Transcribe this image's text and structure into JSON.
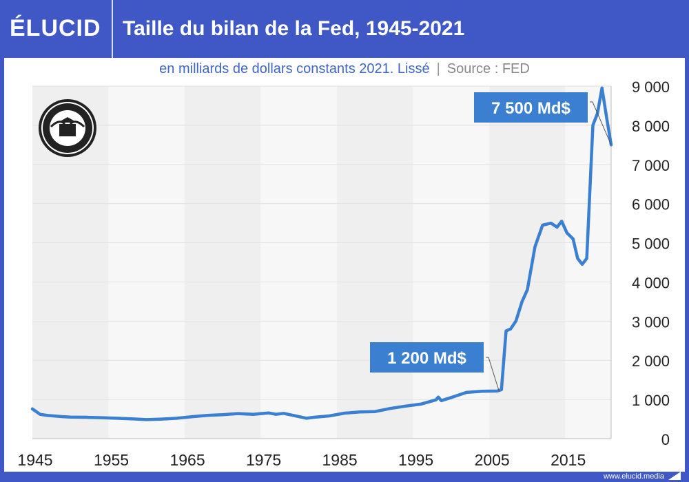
{
  "header": {
    "logo": "ÉLUCID",
    "title": "Taille du bilan de la Fed, 1945-2021"
  },
  "subtitle": {
    "main": "en milliards de dollars constants 2021. Lissé",
    "separator": "|",
    "source": "Source : FED"
  },
  "footer": {
    "url": "www.elucid.media"
  },
  "seal": {
    "text": "UNITED STATES FEDERAL RESERVE SYSTEM"
  },
  "colors": {
    "frame": "#3F58C5",
    "line": "#3A7FD0",
    "label_bg": "#3A7FD0"
  },
  "chart_data": {
    "type": "line",
    "title": "Taille du bilan de la Fed, 1945-2021",
    "xlabel": "",
    "ylabel": "",
    "xlim": [
      1945,
      2021
    ],
    "ylim": [
      0,
      9000
    ],
    "x_ticks": [
      "1945",
      "1955",
      "1965",
      "1975",
      "1985",
      "1995",
      "2005",
      "2015"
    ],
    "y_ticks": [
      "0",
      "1 000",
      "2 000",
      "3 000",
      "4 000",
      "5 000",
      "6 000",
      "7 000",
      "8 000",
      "9 000"
    ],
    "y_axis_side": "right",
    "grid": true,
    "annotations": [
      {
        "text": "1 200 Md$",
        "x": 2006.3,
        "y": 1200
      },
      {
        "text": "7 500 Md$",
        "x": 2021,
        "y": 7500
      }
    ],
    "x": [
      1945,
      1946,
      1947,
      1948,
      1949,
      1950,
      1952,
      1954,
      1956,
      1958,
      1960,
      1962,
      1964,
      1966,
      1968,
      1970,
      1972,
      1974,
      1976,
      1977,
      1978,
      1980,
      1981,
      1982,
      1984,
      1986,
      1988,
      1990,
      1992,
      1994,
      1996,
      1998,
      1998.3,
      1998.7,
      2000,
      2002,
      2004,
      2006,
      2006.3,
      2006.6,
      2007.2,
      2007.8,
      2008.5,
      2009.3,
      2010,
      2011,
      2012,
      2013.1,
      2013.9,
      2014.5,
      2015.2,
      2016,
      2016.6,
      2017.2,
      2017.8,
      2018.6,
      2019.2,
      2019.8,
      2020.4,
      2021
    ],
    "series": [
      {
        "values": [
          760,
          620,
          590,
          575,
          560,
          550,
          545,
          535,
          520,
          505,
          485,
          500,
          520,
          560,
          595,
          610,
          640,
          620,
          655,
          620,
          645,
          560,
          520,
          545,
          580,
          650,
          680,
          690,
          770,
          830,
          880,
          990,
          1060,
          970,
          1050,
          1180,
          1210,
          1215,
          1230,
          1250,
          2750,
          2800,
          3000,
          3500,
          3800,
          4900,
          5450,
          5500,
          5400,
          5550,
          5250,
          5100,
          4600,
          4450,
          4600,
          8000,
          8300,
          8950,
          8200,
          7500
        ]
      }
    ]
  }
}
